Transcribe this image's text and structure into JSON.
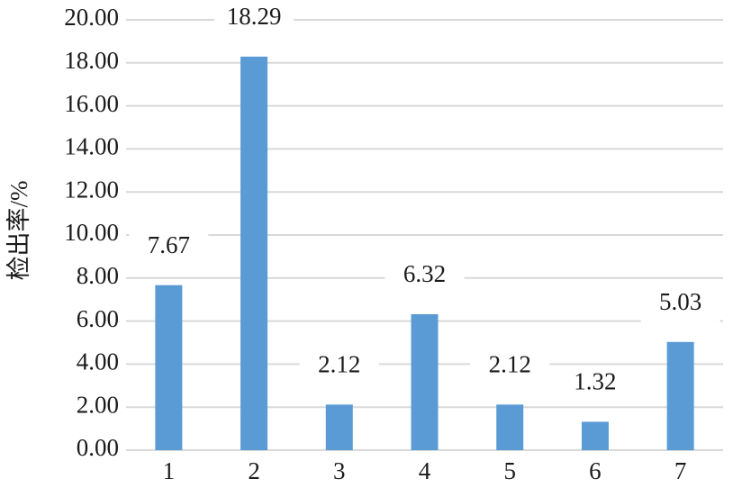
{
  "chart_data": {
    "type": "bar",
    "y_label": "检出率/%",
    "categories": [
      "1",
      "2",
      "3",
      "4",
      "5",
      "6",
      "7"
    ],
    "values": [
      7.67,
      18.29,
      2.12,
      6.32,
      2.12,
      1.32,
      5.03
    ],
    "color": "#5b9bd5",
    "ylim": [
      0,
      20
    ],
    "yticks": [
      {
        "value": 0,
        "label": "0.00"
      },
      {
        "value": 2,
        "label": "2.00"
      },
      {
        "value": 4,
        "label": "4.00"
      },
      {
        "value": 6,
        "label": "6.00"
      },
      {
        "value": 8,
        "label": "8.00"
      },
      {
        "value": 10,
        "label": "10.00"
      },
      {
        "value": 12,
        "label": "12.00"
      },
      {
        "value": 14,
        "label": "14.00"
      },
      {
        "value": 16,
        "label": "16.00"
      },
      {
        "value": 18,
        "label": "18.00"
      },
      {
        "value": 20,
        "label": "20.00"
      }
    ],
    "grid": true
  }
}
